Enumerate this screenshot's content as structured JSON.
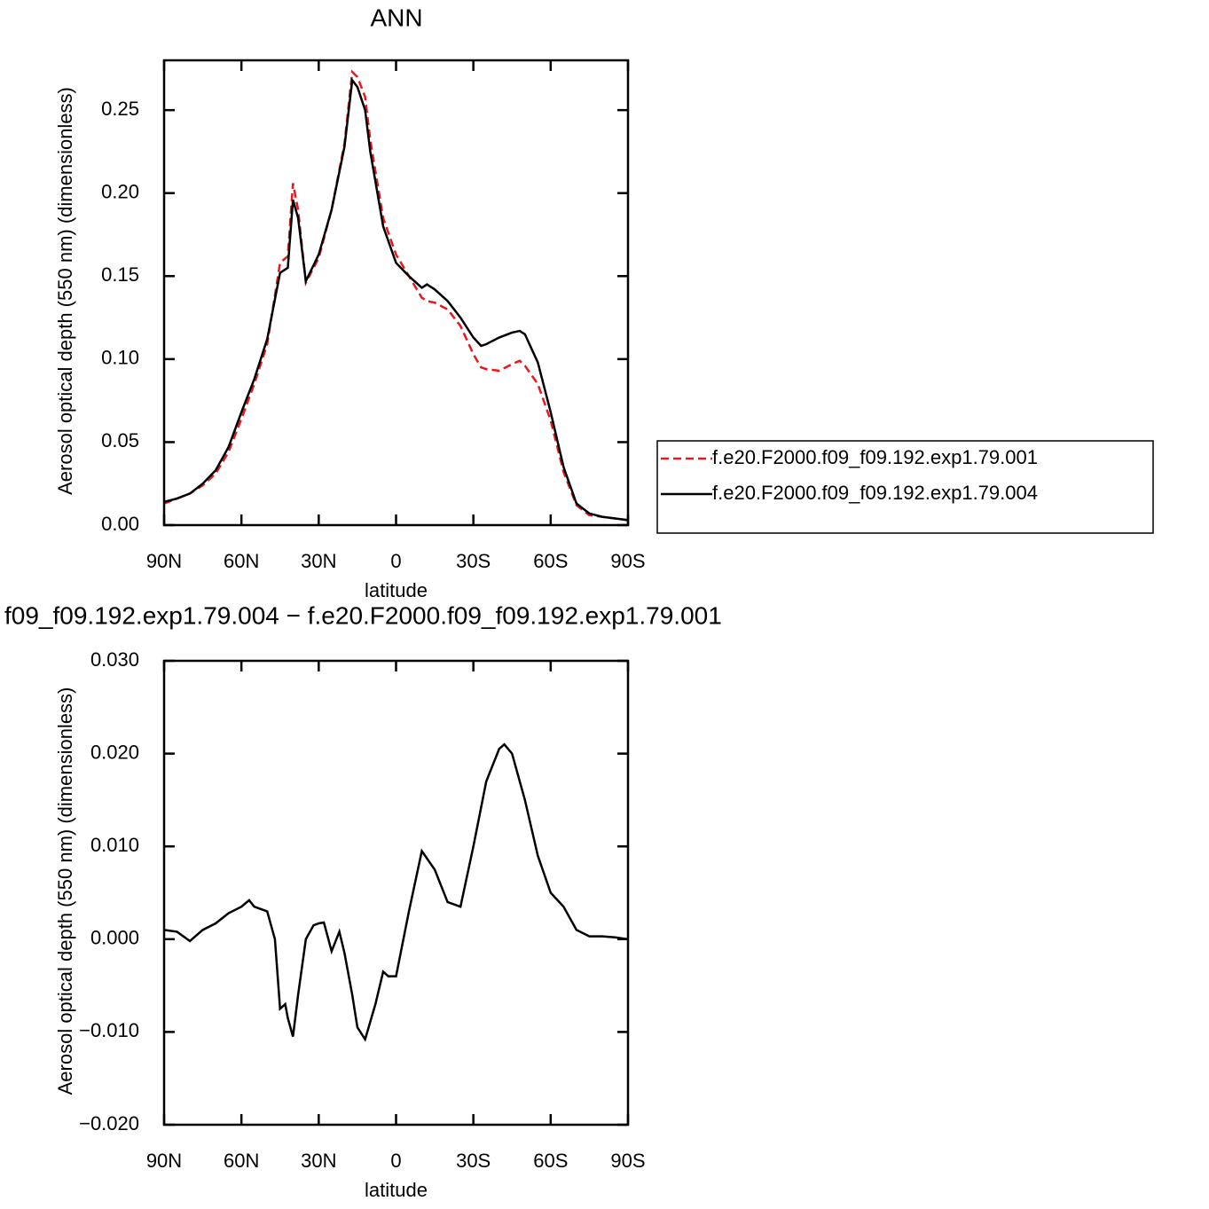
{
  "chart_data": [
    {
      "type": "line",
      "title": "ANN",
      "xlabel": "latitude",
      "ylabel": "Aerosol optical depth (550 nm) (dimensionless)",
      "x": [
        90,
        85,
        80,
        75,
        70,
        65,
        60,
        55,
        50,
        45,
        42,
        40,
        38,
        35,
        30,
        25,
        20,
        17,
        15,
        12,
        10,
        5,
        0,
        -5,
        -10,
        -12,
        -15,
        -20,
        -25,
        -30,
        -33,
        -35,
        -40,
        -45,
        -48,
        -50,
        -55,
        -60,
        -65,
        -70,
        -75,
        -80,
        -85,
        -90
      ],
      "series": [
        {
          "name": "f.e20.F2000.f09_f09.192.exp1.79.001",
          "color": "#e41a1c",
          "linestyle": "dashed",
          "values": [
            0.013,
            0.016,
            0.019,
            0.024,
            0.031,
            0.044,
            0.064,
            0.085,
            0.109,
            0.158,
            0.162,
            0.206,
            0.19,
            0.146,
            0.161,
            0.19,
            0.23,
            0.273,
            0.27,
            0.258,
            0.232,
            0.185,
            0.163,
            0.15,
            0.137,
            0.135,
            0.134,
            0.13,
            0.12,
            0.103,
            0.095,
            0.094,
            0.093,
            0.097,
            0.099,
            0.096,
            0.085,
            0.063,
            0.032,
            0.012,
            0.006,
            0.005,
            0.004,
            0.003
          ]
        },
        {
          "name": "f.e20.F2000.f09_f09.192.exp1.79.004",
          "color": "#000000",
          "linestyle": "solid",
          "values": [
            0.014,
            0.016,
            0.019,
            0.025,
            0.033,
            0.047,
            0.068,
            0.088,
            0.112,
            0.152,
            0.155,
            0.196,
            0.185,
            0.147,
            0.163,
            0.19,
            0.228,
            0.268,
            0.264,
            0.25,
            0.225,
            0.18,
            0.158,
            0.15,
            0.143,
            0.145,
            0.142,
            0.135,
            0.125,
            0.113,
            0.108,
            0.109,
            0.113,
            0.116,
            0.117,
            0.115,
            0.098,
            0.068,
            0.035,
            0.013,
            0.007,
            0.005,
            0.004,
            0.003
          ]
        }
      ],
      "xlim": [
        90,
        -90
      ],
      "xticks": [
        {
          "value": 90,
          "label": "90N"
        },
        {
          "value": 60,
          "label": "60N"
        },
        {
          "value": 30,
          "label": "30N"
        },
        0,
        {
          "value": -30,
          "label": "30S"
        },
        {
          "value": -60,
          "label": "60S"
        },
        {
          "value": -90,
          "label": "90S"
        }
      ],
      "ylim": [
        0,
        0.28
      ],
      "yticks": [
        {
          "value": 0,
          "label": "0.00"
        },
        {
          "value": 0.05,
          "label": "0.05"
        },
        {
          "value": 0.1,
          "label": "0.10"
        },
        {
          "value": 0.15,
          "label": "0.15"
        },
        {
          "value": 0.2,
          "label": "0.20"
        },
        {
          "value": 0.25,
          "label": "0.25"
        }
      ],
      "legend": "right"
    },
    {
      "type": "line",
      "title": "f09_f09.192.exp1.79.004 − f.e20.F2000.f09_f09.192.exp1.79.001",
      "xlabel": "latitude",
      "ylabel": "Aerosol optical depth (550 nm) (dimensionless)",
      "x": [
        90,
        85,
        80,
        75,
        70,
        65,
        60,
        57,
        55,
        50,
        47,
        45,
        43,
        42,
        40,
        38,
        35,
        32,
        30,
        28,
        25,
        22,
        20,
        17,
        15,
        12,
        8,
        5,
        3,
        0,
        -5,
        -10,
        -15,
        -20,
        -25,
        -30,
        -35,
        -40,
        -42,
        -45,
        -50,
        -55,
        -60,
        -65,
        -70,
        -75,
        -80,
        -85,
        -90
      ],
      "series": [
        {
          "color": "#000000",
          "linestyle": "solid",
          "values": [
            0.001,
            0.0008,
            -0.0002,
            0.001,
            0.0017,
            0.0028,
            0.0035,
            0.0042,
            0.0035,
            0.003,
            0.0,
            -0.0075,
            -0.007,
            -0.0085,
            -0.0105,
            -0.006,
            0.0,
            0.0015,
            0.0017,
            0.0018,
            -0.0013,
            0.0008,
            -0.0015,
            -0.006,
            -0.0095,
            -0.0108,
            -0.007,
            -0.0035,
            -0.004,
            -0.004,
            0.003,
            0.0095,
            0.0075,
            0.004,
            0.0035,
            0.01,
            0.017,
            0.0205,
            0.021,
            0.02,
            0.015,
            0.009,
            0.005,
            0.0035,
            0.001,
            0.0003,
            0.0003,
            0.0002,
            0.0
          ]
        }
      ],
      "xlim": [
        90,
        -90
      ],
      "xticks": [
        {
          "value": 90,
          "label": "90N"
        },
        {
          "value": 60,
          "label": "60N"
        },
        {
          "value": 30,
          "label": "30N"
        },
        0,
        {
          "value": -30,
          "label": "30S"
        },
        {
          "value": -60,
          "label": "60S"
        },
        {
          "value": -90,
          "label": "90S"
        }
      ],
      "ylim": [
        -0.02,
        0.03
      ],
      "yticks": [
        {
          "value": -0.02,
          "label": "−0.020"
        },
        {
          "value": -0.01,
          "label": "−0.010"
        },
        {
          "value": 0,
          "label": "0.000"
        },
        {
          "value": 0.01,
          "label": "0.010"
        },
        {
          "value": 0.02,
          "label": "0.020"
        },
        {
          "value": 0.03,
          "label": "0.030"
        }
      ]
    }
  ]
}
